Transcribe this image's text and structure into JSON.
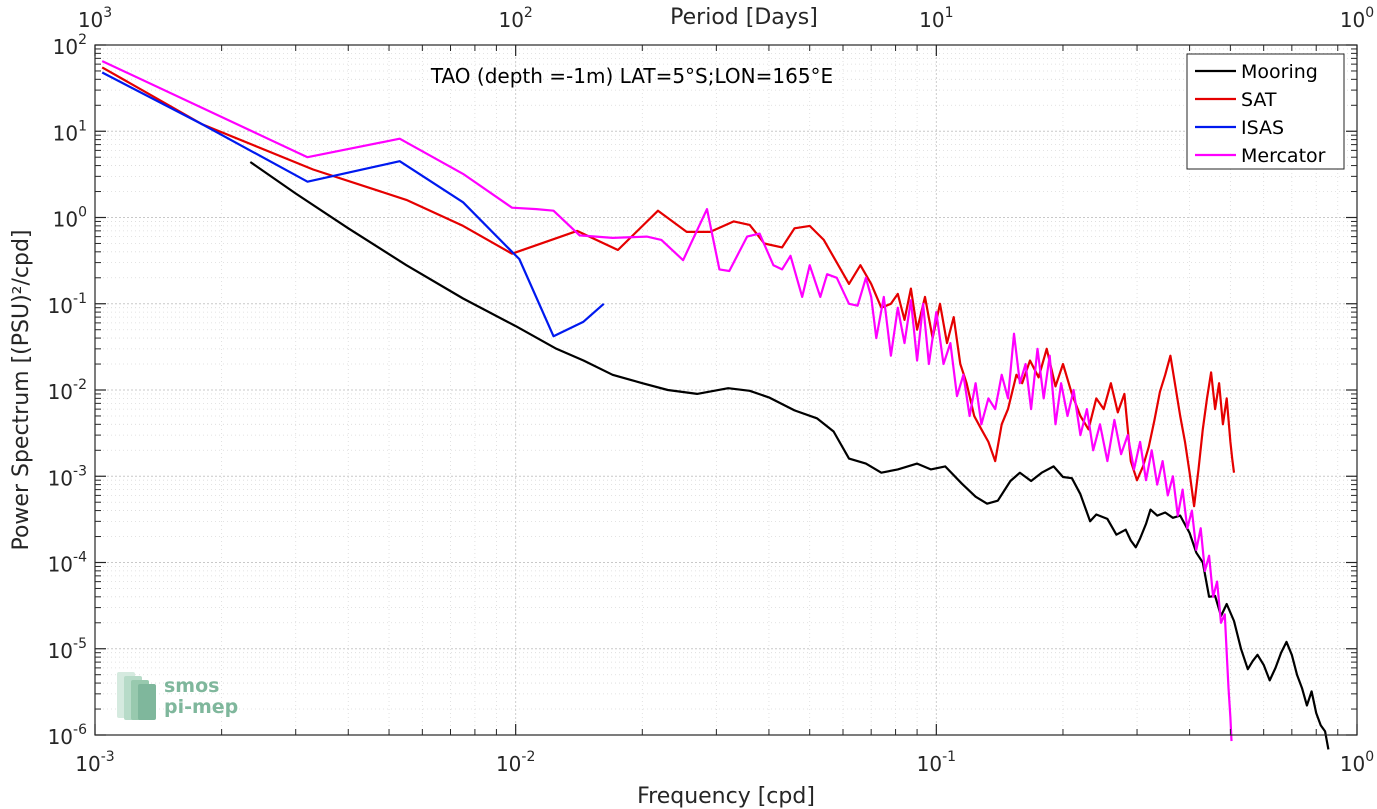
{
  "chart_data": {
    "type": "line",
    "title": "TAO (depth =-1m) LAT=5°S;LON=165°E",
    "xlabel": "Frequency [cpd]",
    "ylabel": "Power Spectrum [(PSU)²/cpd]",
    "top_xlabel": "Period [Days]",
    "x_scale": "log",
    "y_scale": "log",
    "xlim": [
      0.001,
      1
    ],
    "ylim": [
      1e-06,
      100
    ],
    "grid": true,
    "legend_position": "top-right",
    "x_ticks": [
      {
        "value": 0.001,
        "base": "10",
        "exp": "-3"
      },
      {
        "value": 0.01,
        "base": "10",
        "exp": "-2"
      },
      {
        "value": 0.1,
        "base": "10",
        "exp": "-1"
      },
      {
        "value": 1,
        "base": "10",
        "exp": "0"
      }
    ],
    "top_ticks": [
      {
        "value": 0.001,
        "base": "10",
        "exp": "3"
      },
      {
        "value": 0.01,
        "base": "10",
        "exp": "2"
      },
      {
        "value": 0.1,
        "base": "10",
        "exp": "1"
      },
      {
        "value": 1,
        "base": "10",
        "exp": "0"
      }
    ],
    "y_ticks": [
      {
        "value": 100,
        "base": "10",
        "exp": "2"
      },
      {
        "value": 10,
        "base": "10",
        "exp": "1"
      },
      {
        "value": 1,
        "base": "10",
        "exp": "0"
      },
      {
        "value": 0.1,
        "base": "10",
        "exp": "-1"
      },
      {
        "value": 0.01,
        "base": "10",
        "exp": "-2"
      },
      {
        "value": 0.001,
        "base": "10",
        "exp": "-3"
      },
      {
        "value": 0.0001,
        "base": "10",
        "exp": "-4"
      },
      {
        "value": 1e-05,
        "base": "10",
        "exp": "-5"
      },
      {
        "value": 1e-06,
        "base": "10",
        "exp": "-6"
      }
    ],
    "series": [
      {
        "name": "Mooring",
        "color": "#000000",
        "points": [
          [
            0.00234,
            4.4
          ],
          [
            0.003,
            1.9
          ],
          [
            0.004,
            0.75
          ],
          [
            0.0055,
            0.28
          ],
          [
            0.0075,
            0.115
          ],
          [
            0.01,
            0.055
          ],
          [
            0.0125,
            0.03
          ],
          [
            0.0145,
            0.022
          ],
          [
            0.017,
            0.015
          ],
          [
            0.02,
            0.012
          ],
          [
            0.023,
            0.01
          ],
          [
            0.027,
            0.009
          ],
          [
            0.032,
            0.0105
          ],
          [
            0.036,
            0.0098
          ],
          [
            0.04,
            0.0082
          ],
          [
            0.046,
            0.0058
          ],
          [
            0.052,
            0.0047
          ],
          [
            0.057,
            0.0033
          ],
          [
            0.062,
            0.0016
          ],
          [
            0.068,
            0.0014
          ],
          [
            0.074,
            0.0011
          ],
          [
            0.081,
            0.0012
          ],
          [
            0.09,
            0.0014
          ],
          [
            0.097,
            0.0012
          ],
          [
            0.105,
            0.0013
          ],
          [
            0.115,
            0.00082
          ],
          [
            0.124,
            0.00058
          ],
          [
            0.132,
            0.00048
          ],
          [
            0.14,
            0.00052
          ],
          [
            0.15,
            0.00088
          ],
          [
            0.158,
            0.0011
          ],
          [
            0.168,
            0.00088
          ],
          [
            0.178,
            0.0011
          ],
          [
            0.19,
            0.0013
          ],
          [
            0.2,
            0.00098
          ],
          [
            0.21,
            0.00095
          ],
          [
            0.22,
            0.00062
          ],
          [
            0.232,
            0.0003
          ],
          [
            0.24,
            0.00036
          ],
          [
            0.255,
            0.00032
          ],
          [
            0.268,
            0.00021
          ],
          [
            0.282,
            0.00024
          ],
          [
            0.29,
            0.00018
          ],
          [
            0.298,
            0.00015
          ],
          [
            0.305,
            0.00019
          ],
          [
            0.315,
            0.00028
          ],
          [
            0.323,
            0.00041
          ],
          [
            0.335,
            0.00035
          ],
          [
            0.35,
            0.00038
          ],
          [
            0.365,
            0.00033
          ],
          [
            0.38,
            0.00035
          ],
          [
            0.4,
            0.00022
          ],
          [
            0.415,
            0.00013
          ],
          [
            0.43,
            0.0001
          ],
          [
            0.445,
            4e-05
          ],
          [
            0.46,
            4.1e-05
          ],
          [
            0.475,
            2.4e-05
          ],
          [
            0.49,
            3.3e-05
          ],
          [
            0.51,
            2.1e-05
          ],
          [
            0.53,
            1e-05
          ],
          [
            0.55,
            5.8e-06
          ],
          [
            0.565,
            7.2e-06
          ],
          [
            0.58,
            8.5e-06
          ],
          [
            0.6,
            6.5e-06
          ],
          [
            0.62,
            4.3e-06
          ],
          [
            0.64,
            6e-06
          ],
          [
            0.66,
            9e-06
          ],
          [
            0.68,
            1.2e-05
          ],
          [
            0.7,
            8.5e-06
          ],
          [
            0.72,
            5e-06
          ],
          [
            0.74,
            3.5e-06
          ],
          [
            0.76,
            2.2e-06
          ],
          [
            0.78,
            3.2e-06
          ],
          [
            0.8,
            1.8e-06
          ],
          [
            0.82,
            1.3e-06
          ],
          [
            0.84,
            1.1e-06
          ],
          [
            0.855,
            6.8e-07
          ]
        ]
      },
      {
        "name": "SAT",
        "color": "#e50000",
        "points": [
          [
            0.00104,
            55
          ],
          [
            0.0018,
            12
          ],
          [
            0.0033,
            3.6
          ],
          [
            0.0055,
            1.6
          ],
          [
            0.0075,
            0.8
          ],
          [
            0.0098,
            0.38
          ],
          [
            0.014,
            0.7
          ],
          [
            0.0175,
            0.42
          ],
          [
            0.0218,
            1.2
          ],
          [
            0.0255,
            0.68
          ],
          [
            0.029,
            0.68
          ],
          [
            0.033,
            0.9
          ],
          [
            0.036,
            0.82
          ],
          [
            0.039,
            0.5
          ],
          [
            0.043,
            0.45
          ],
          [
            0.046,
            0.75
          ],
          [
            0.05,
            0.8
          ],
          [
            0.054,
            0.55
          ],
          [
            0.058,
            0.3
          ],
          [
            0.062,
            0.17
          ],
          [
            0.066,
            0.28
          ],
          [
            0.07,
            0.17
          ],
          [
            0.074,
            0.09
          ],
          [
            0.078,
            0.1
          ],
          [
            0.081,
            0.13
          ],
          [
            0.084,
            0.065
          ],
          [
            0.087,
            0.15
          ],
          [
            0.09,
            0.05
          ],
          [
            0.094,
            0.12
          ],
          [
            0.098,
            0.04
          ],
          [
            0.102,
            0.1
          ],
          [
            0.106,
            0.035
          ],
          [
            0.11,
            0.07
          ],
          [
            0.114,
            0.02
          ],
          [
            0.118,
            0.012
          ],
          [
            0.123,
            0.005
          ],
          [
            0.128,
            0.0035
          ],
          [
            0.133,
            0.0025
          ],
          [
            0.138,
            0.0015
          ],
          [
            0.143,
            0.004
          ],
          [
            0.148,
            0.006
          ],
          [
            0.155,
            0.015
          ],
          [
            0.16,
            0.012
          ],
          [
            0.167,
            0.022
          ],
          [
            0.175,
            0.014
          ],
          [
            0.183,
            0.03
          ],
          [
            0.192,
            0.011
          ],
          [
            0.2,
            0.02
          ],
          [
            0.21,
            0.009
          ],
          [
            0.22,
            0.005
          ],
          [
            0.23,
            0.0035
          ],
          [
            0.24,
            0.008
          ],
          [
            0.25,
            0.006
          ],
          [
            0.26,
            0.012
          ],
          [
            0.27,
            0.0055
          ],
          [
            0.28,
            0.009
          ],
          [
            0.29,
            0.0015
          ],
          [
            0.3,
            0.0009
          ],
          [
            0.31,
            0.0013
          ],
          [
            0.32,
            0.0022
          ],
          [
            0.33,
            0.0045
          ],
          [
            0.34,
            0.0095
          ],
          [
            0.35,
            0.015
          ],
          [
            0.36,
            0.025
          ],
          [
            0.37,
            0.011
          ],
          [
            0.38,
            0.005
          ],
          [
            0.39,
            0.0025
          ],
          [
            0.4,
            0.0011
          ],
          [
            0.41,
            0.00045
          ],
          [
            0.42,
            0.0012
          ],
          [
            0.43,
            0.0035
          ],
          [
            0.44,
            0.008
          ],
          [
            0.45,
            0.016
          ],
          [
            0.46,
            0.006
          ],
          [
            0.47,
            0.012
          ],
          [
            0.48,
            0.004
          ],
          [
            0.49,
            0.008
          ],
          [
            0.5,
            0.0025
          ],
          [
            0.505,
            0.0016
          ],
          [
            0.51,
            0.0011
          ]
        ]
      },
      {
        "name": "ISAS",
        "color": "#0019ef",
        "points": [
          [
            0.00104,
            48
          ],
          [
            0.0018,
            12
          ],
          [
            0.0032,
            2.6
          ],
          [
            0.0053,
            4.5
          ],
          [
            0.0075,
            1.5
          ],
          [
            0.0098,
            0.4
          ],
          [
            0.0102,
            0.33
          ],
          [
            0.0123,
            0.042
          ],
          [
            0.0145,
            0.062
          ],
          [
            0.0162,
            0.1
          ]
        ]
      },
      {
        "name": "Mercator",
        "color": "#ff00ff",
        "points": [
          [
            0.00104,
            65
          ],
          [
            0.0032,
            5
          ],
          [
            0.0053,
            8.2
          ],
          [
            0.0075,
            3.2
          ],
          [
            0.0098,
            1.3
          ],
          [
            0.0112,
            1.25
          ],
          [
            0.0123,
            1.2
          ],
          [
            0.0142,
            0.62
          ],
          [
            0.017,
            0.58
          ],
          [
            0.0205,
            0.6
          ],
          [
            0.0222,
            0.55
          ],
          [
            0.025,
            0.32
          ],
          [
            0.0285,
            1.25
          ],
          [
            0.0305,
            0.25
          ],
          [
            0.0322,
            0.24
          ],
          [
            0.0355,
            0.6
          ],
          [
            0.038,
            0.65
          ],
          [
            0.041,
            0.28
          ],
          [
            0.043,
            0.25
          ],
          [
            0.045,
            0.36
          ],
          [
            0.048,
            0.12
          ],
          [
            0.05,
            0.28
          ],
          [
            0.053,
            0.12
          ],
          [
            0.055,
            0.22
          ],
          [
            0.058,
            0.2
          ],
          [
            0.062,
            0.1
          ],
          [
            0.065,
            0.095
          ],
          [
            0.068,
            0.2
          ],
          [
            0.07,
            0.12
          ],
          [
            0.072,
            0.04
          ],
          [
            0.075,
            0.12
          ],
          [
            0.078,
            0.025
          ],
          [
            0.081,
            0.09
          ],
          [
            0.084,
            0.035
          ],
          [
            0.087,
            0.11
          ],
          [
            0.09,
            0.022
          ],
          [
            0.093,
            0.1
          ],
          [
            0.096,
            0.02
          ],
          [
            0.1,
            0.08
          ],
          [
            0.104,
            0.02
          ],
          [
            0.108,
            0.035
          ],
          [
            0.112,
            0.0085
          ],
          [
            0.116,
            0.015
          ],
          [
            0.12,
            0.005
          ],
          [
            0.124,
            0.012
          ],
          [
            0.128,
            0.004
          ],
          [
            0.133,
            0.008
          ],
          [
            0.138,
            0.006
          ],
          [
            0.143,
            0.015
          ],
          [
            0.148,
            0.008
          ],
          [
            0.153,
            0.045
          ],
          [
            0.158,
            0.012
          ],
          [
            0.163,
            0.02
          ],
          [
            0.168,
            0.006
          ],
          [
            0.174,
            0.03
          ],
          [
            0.18,
            0.008
          ],
          [
            0.186,
            0.025
          ],
          [
            0.192,
            0.004
          ],
          [
            0.198,
            0.012
          ],
          [
            0.205,
            0.005
          ],
          [
            0.212,
            0.01
          ],
          [
            0.22,
            0.003
          ],
          [
            0.228,
            0.006
          ],
          [
            0.236,
            0.002
          ],
          [
            0.245,
            0.004
          ],
          [
            0.255,
            0.0015
          ],
          [
            0.265,
            0.0045
          ],
          [
            0.275,
            0.0018
          ],
          [
            0.285,
            0.003
          ],
          [
            0.295,
            0.0012
          ],
          [
            0.305,
            0.0025
          ],
          [
            0.315,
            0.0009
          ],
          [
            0.325,
            0.002
          ],
          [
            0.335,
            0.0008
          ],
          [
            0.345,
            0.0015
          ],
          [
            0.355,
            0.0006
          ],
          [
            0.365,
            0.001
          ],
          [
            0.375,
            0.00035
          ],
          [
            0.385,
            0.0007
          ],
          [
            0.395,
            0.00025
          ],
          [
            0.405,
            0.0004
          ],
          [
            0.415,
            0.00014
          ],
          [
            0.425,
            0.00025
          ],
          [
            0.435,
            8e-05
          ],
          [
            0.445,
            0.00012
          ],
          [
            0.455,
            4e-05
          ],
          [
            0.465,
            6e-05
          ],
          [
            0.475,
            2e-05
          ],
          [
            0.485,
            2.5e-05
          ],
          [
            0.49,
            9e-06
          ],
          [
            0.495,
            3.5e-06
          ],
          [
            0.5,
            1.6e-06
          ],
          [
            0.503,
            8.5e-07
          ]
        ]
      }
    ]
  },
  "logo": {
    "line1": "smos",
    "line2": "pi-mep"
  }
}
